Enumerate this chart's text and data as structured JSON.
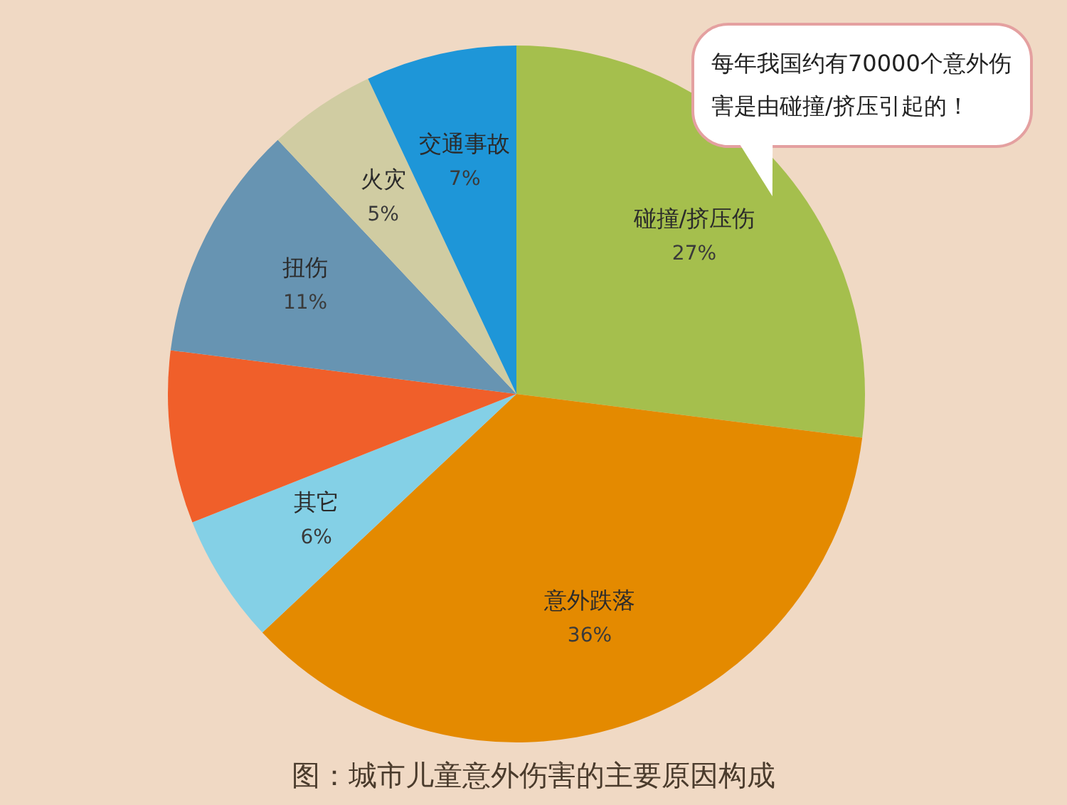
{
  "chart_data": {
    "type": "pie",
    "title": "图：城市儿童意外伤害的主要原因构成",
    "categories": [
      "碰撞/挤压伤",
      "意外跌落",
      "其它",
      null,
      "扭伤",
      "火灾",
      "交通事故"
    ],
    "values": [
      27,
      36,
      6,
      8,
      11,
      5,
      7
    ],
    "colors": [
      "#a5bf4d",
      "#e48a00",
      "#84d0e6",
      "#f05f2a",
      "#6794b2",
      "#d0cca2",
      "#1e96d8"
    ],
    "value_labels": [
      "27%",
      "36%",
      "6%",
      null,
      "11%",
      "5%",
      "7%"
    ],
    "annotations": [
      "每年我国约有70000个意外伤害是由碰撞/挤压引起的！"
    ]
  }
}
